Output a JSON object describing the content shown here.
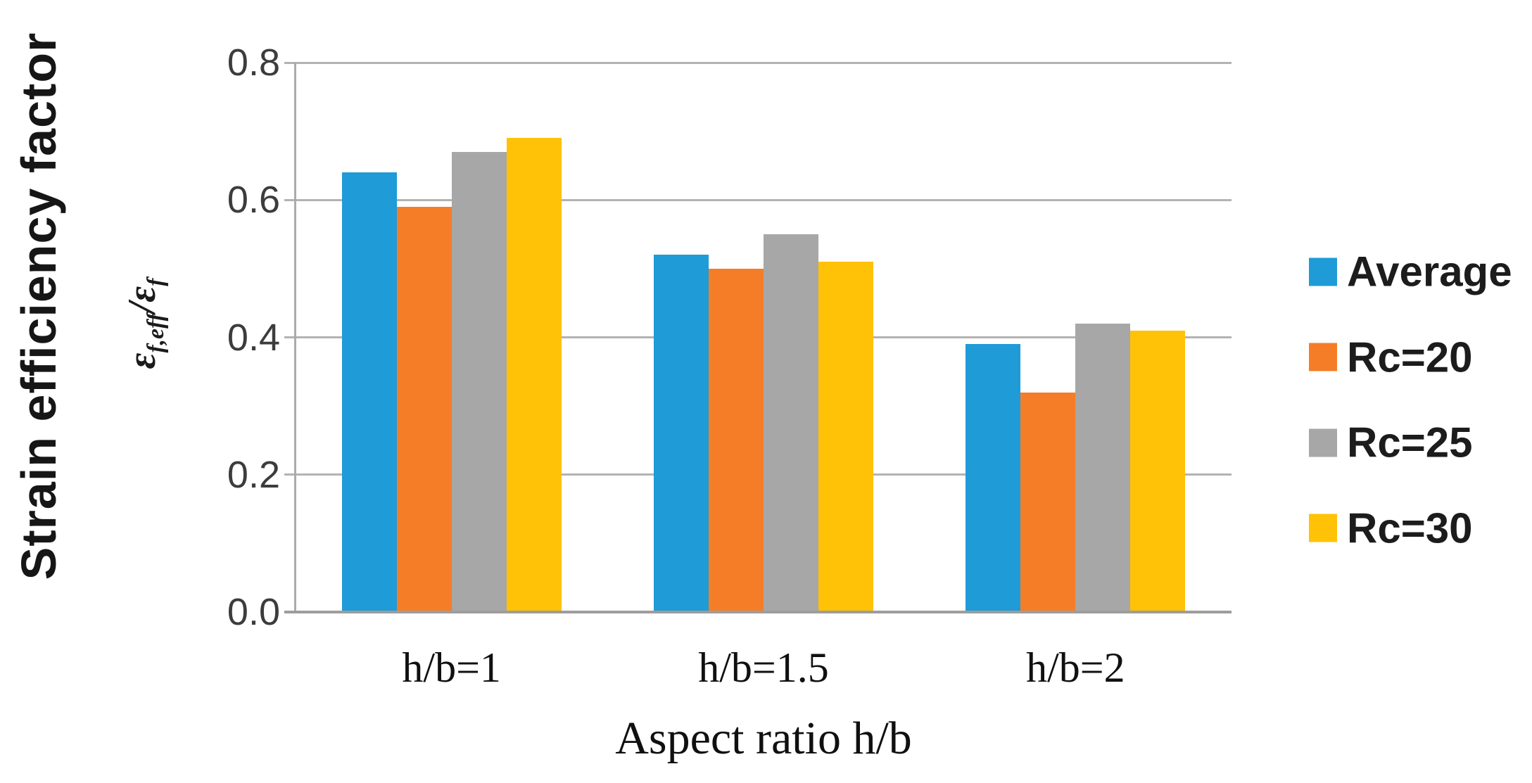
{
  "figure": {
    "y_axis_title": "Strain efficiency factor",
    "y_axis_formula": {
      "text": "εf,eff/εf",
      "num_base": "ε",
      "num_sub": "f,eff",
      "slash": "/",
      "den_base": "ε",
      "den_sub": "f"
    },
    "x_axis_title": "Aspect ratio h/b"
  },
  "chart_data": {
    "type": "bar",
    "title": "",
    "xlabel": "Aspect ratio h/b",
    "ylabel": "Strain efficiency factor εf,eff/εf",
    "categories": [
      "h/b=1",
      "h/b=1.5",
      "h/b=2"
    ],
    "series": [
      {
        "name": "Average",
        "color": "#1F9BD7",
        "values": [
          0.64,
          0.52,
          0.39
        ]
      },
      {
        "name": "Rc=20",
        "color": "#F57D27",
        "values": [
          0.59,
          0.5,
          0.32
        ]
      },
      {
        "name": "Rc=25",
        "color": "#A7A7A7",
        "values": [
          0.67,
          0.55,
          0.42
        ]
      },
      {
        "name": "Rc=30",
        "color": "#FFC206",
        "values": [
          0.69,
          0.51,
          0.41
        ]
      }
    ],
    "ylim": [
      0.0,
      0.8
    ],
    "ytick_step": 0.2,
    "yticks": [
      "0.0",
      "0.2",
      "0.4",
      "0.6",
      "0.8"
    ],
    "grid": true,
    "legend_position": "right"
  },
  "colors": {
    "gridline": "#b3b3b3",
    "axis_line": "#9d9d9d",
    "tick_text": "#3c3c3c",
    "label_text": "#101010"
  }
}
